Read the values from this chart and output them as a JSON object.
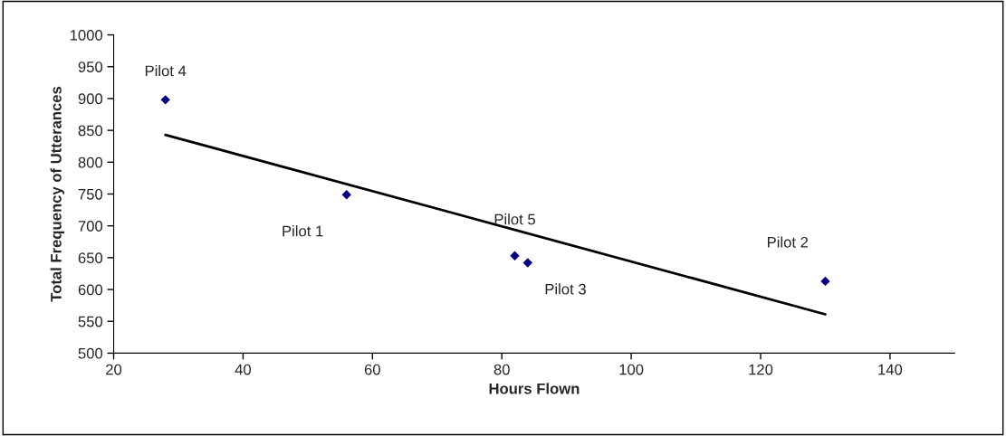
{
  "chart_data": {
    "type": "scatter",
    "xlabel": "Hours Flown",
    "ylabel": "Total Frequency of Utterances",
    "series": [
      {
        "color": "#000080",
        "marker": "diamond",
        "x": [
          28,
          56,
          82,
          84,
          130
        ],
        "values": [
          898,
          749,
          653,
          642,
          613
        ]
      },
      {
        "type": "line",
        "color": "#000000",
        "marker": "none",
        "line_style": "solid",
        "x": [
          28,
          130
        ],
        "values": [
          843,
          561
        ]
      }
    ],
    "annotations": [
      {
        "text": "Pilot 4",
        "x": 28,
        "y": 898
      },
      {
        "text": "Pilot 1",
        "x": 56,
        "y": 749
      },
      {
        "text": "Pilot 5",
        "x": 82,
        "y": 653
      },
      {
        "text": "Pilot 3",
        "x": 84,
        "y": 642
      },
      {
        "text": "Pilot 2",
        "x": 130,
        "y": 613
      }
    ],
    "xlim": [
      20,
      150
    ],
    "xticks": [
      20,
      40,
      60,
      80,
      100,
      120,
      140
    ],
    "ylim": [
      500,
      1000
    ],
    "yticks": [
      500,
      550,
      600,
      650,
      700,
      750,
      800,
      850,
      900,
      950,
      1000
    ],
    "grid": false,
    "legend": false
  }
}
